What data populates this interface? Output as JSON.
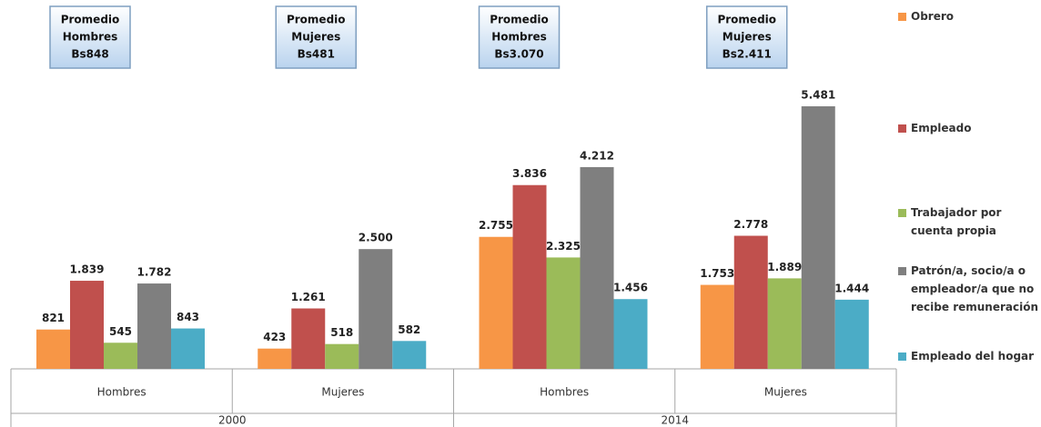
{
  "chart_data": {
    "type": "bar",
    "groups": [
      {
        "name": "2000",
        "categories": [
          "Hombres",
          "Mujeres"
        ]
      },
      {
        "name": "2014",
        "categories": [
          "Hombres",
          "Mujeres"
        ]
      }
    ],
    "annotations": [
      {
        "lines": [
          "Promedio",
          "Hombres",
          "Bs848"
        ]
      },
      {
        "lines": [
          "Promedio",
          "Mujeres",
          "Bs481"
        ]
      },
      {
        "lines": [
          "Promedio",
          "Hombres",
          "Bs3.070"
        ]
      },
      {
        "lines": [
          "Promedio",
          "Mujeres",
          "Bs2.411"
        ]
      }
    ],
    "series": [
      {
        "name": "Obrero",
        "color": "#f79646",
        "values": [
          821,
          423,
          2755,
          1753
        ],
        "value_labels": [
          "821",
          "423",
          "2.755",
          "1.753"
        ]
      },
      {
        "name": "Empleado",
        "color": "#c0504d",
        "values": [
          1839,
          1261,
          3836,
          2778
        ],
        "value_labels": [
          "1.839",
          "1.261",
          "3.836",
          "2.778"
        ]
      },
      {
        "name": "Trabajador por cuenta propia",
        "color": "#9bbb59",
        "values": [
          545,
          518,
          2325,
          1889
        ],
        "value_labels": [
          "545",
          "518",
          "2.325",
          "1.889"
        ]
      },
      {
        "name": "Patrón/a, socio/a o empleador/a que no recibe remuneración",
        "color": "#7f7f7f",
        "values": [
          1782,
          2500,
          4212,
          5481
        ],
        "value_labels": [
          "1.782",
          "2.500",
          "4.212",
          "5.481"
        ]
      },
      {
        "name": "Empleado del hogar",
        "color": "#4bacc6",
        "values": [
          843,
          582,
          1456,
          1444
        ],
        "value_labels": [
          "843",
          "582",
          "1.456",
          "1.444"
        ]
      }
    ]
  }
}
